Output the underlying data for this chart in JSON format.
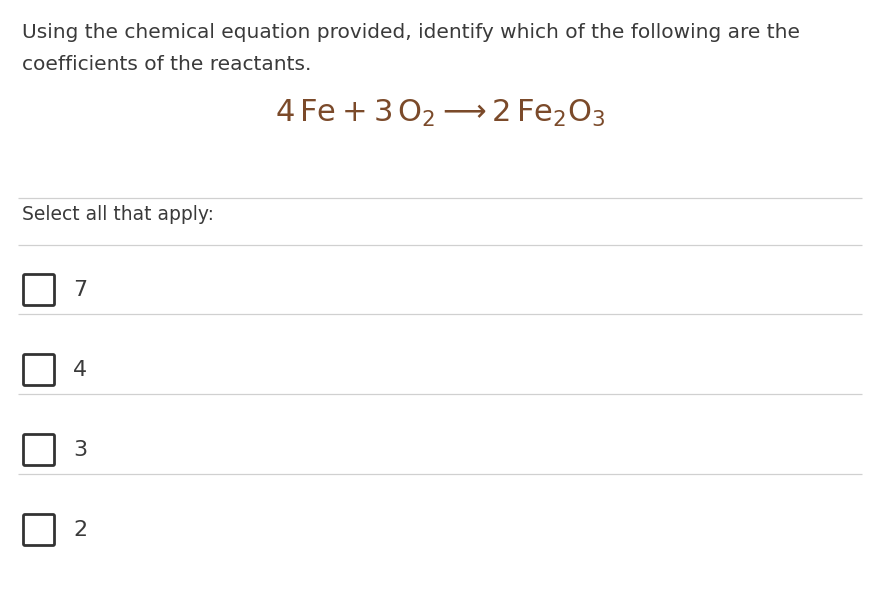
{
  "title_line1": "Using the chemical equation provided, identify which of the following are the",
  "title_line2": "coefficients of the reactants.",
  "select_label": "Select all that apply:",
  "options": [
    "7",
    "4",
    "3",
    "2"
  ],
  "background_color": "#ffffff",
  "text_color": "#3a3a3a",
  "equation_color": "#7b4a2a",
  "line_color": "#d0d0d0",
  "checkbox_color": "#333333",
  "title_fontsize": 14.5,
  "equation_fontsize": 22,
  "select_fontsize": 13.5,
  "option_fontsize": 16,
  "fig_width": 8.8,
  "fig_height": 6.13,
  "dpi": 100
}
